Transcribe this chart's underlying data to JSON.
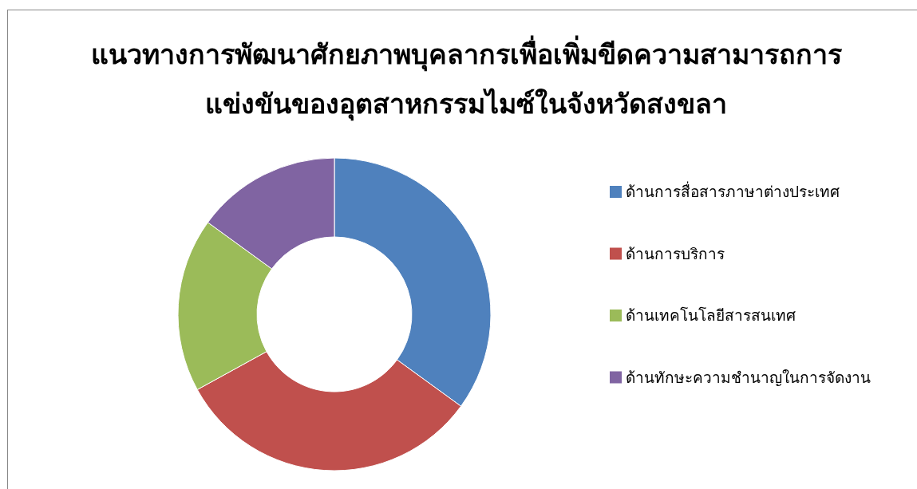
{
  "chart_data": {
    "type": "donut",
    "title": "แนวทางการพัฒนาศักยภาพบุคลากรเพื่อเพิ่มขีดความสามารถการ\nแข่งขันของอุตสาหกรรมไมซ์ในจังหวัดสงขลา",
    "categories": [
      "ด้านการสื่อสารภาษาต่างประเทศ",
      "ด้านการบริการ",
      "ด้านเทคโนโลยีสารสนเทศ",
      "ด้านทักษะความชำนาญในการจัดงาน"
    ],
    "values": [
      35,
      32,
      18,
      15
    ],
    "colors": [
      "#4f81bd",
      "#c0504d",
      "#9bbb59",
      "#8064a2"
    ],
    "legend": "right"
  }
}
